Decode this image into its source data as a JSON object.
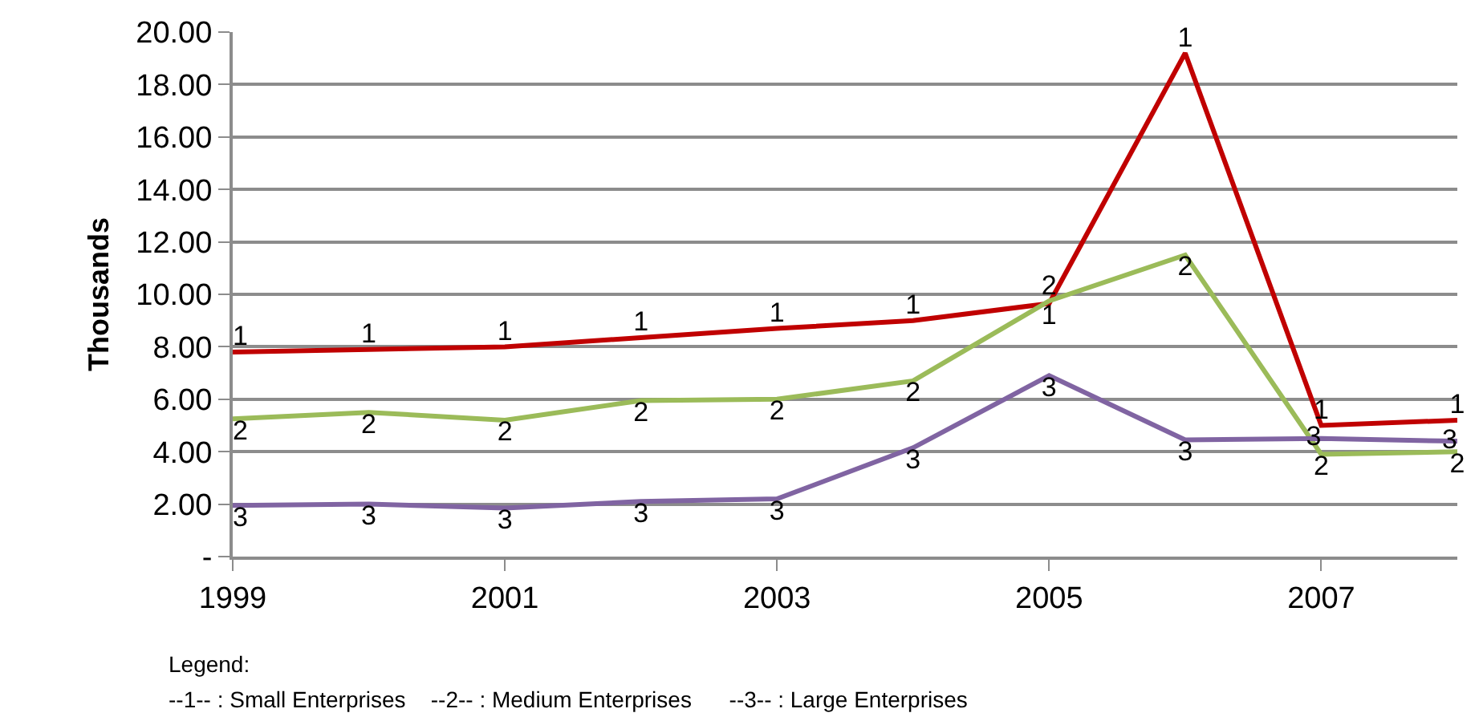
{
  "chart_data": {
    "type": "line",
    "ylabel": "Thousands",
    "x": [
      1999,
      2000,
      2001,
      2002,
      2003,
      2004,
      2005,
      2006,
      2007,
      2008
    ],
    "series": [
      {
        "name": "1",
        "color": "#c00000",
        "values": [
          7.8,
          7.9,
          8.0,
          8.35,
          8.7,
          9.0,
          9.65,
          19.2,
          5.0,
          5.2
        ]
      },
      {
        "name": "2",
        "color": "#9bbb59",
        "values": [
          5.25,
          5.5,
          5.2,
          5.95,
          6.0,
          6.7,
          9.75,
          11.5,
          3.9,
          4.0
        ]
      },
      {
        "name": "3",
        "color": "#8064a2",
        "values": [
          1.95,
          2.0,
          1.85,
          2.1,
          2.2,
          4.15,
          6.9,
          4.45,
          4.5,
          4.4
        ]
      }
    ],
    "xlim": [
      1999,
      2008
    ],
    "xticks": [
      1999,
      2001,
      2003,
      2005,
      2007
    ],
    "ylim": [
      0,
      20
    ],
    "yticks": [
      {
        "value": 0,
        "label": "-"
      },
      {
        "value": 2,
        "label": "2.00"
      },
      {
        "value": 4,
        "label": "4.00"
      },
      {
        "value": 6,
        "label": "6.00"
      },
      {
        "value": 8,
        "label": "8.00"
      },
      {
        "value": 10,
        "label": "10.00"
      },
      {
        "value": 12,
        "label": "12.00"
      },
      {
        "value": 14,
        "label": "14.00"
      },
      {
        "value": 16,
        "label": "16.00"
      },
      {
        "value": 18,
        "label": "18.00"
      },
      {
        "value": 20,
        "label": "20.00"
      }
    ],
    "grid": "y",
    "legend": false,
    "marker": "none",
    "line_style": "solid",
    "annotations": [
      "Legend:",
      "--1-- : Small Enterprises    --2-- : Medium Enterprises      --3-- : Large Enterprises"
    ]
  }
}
